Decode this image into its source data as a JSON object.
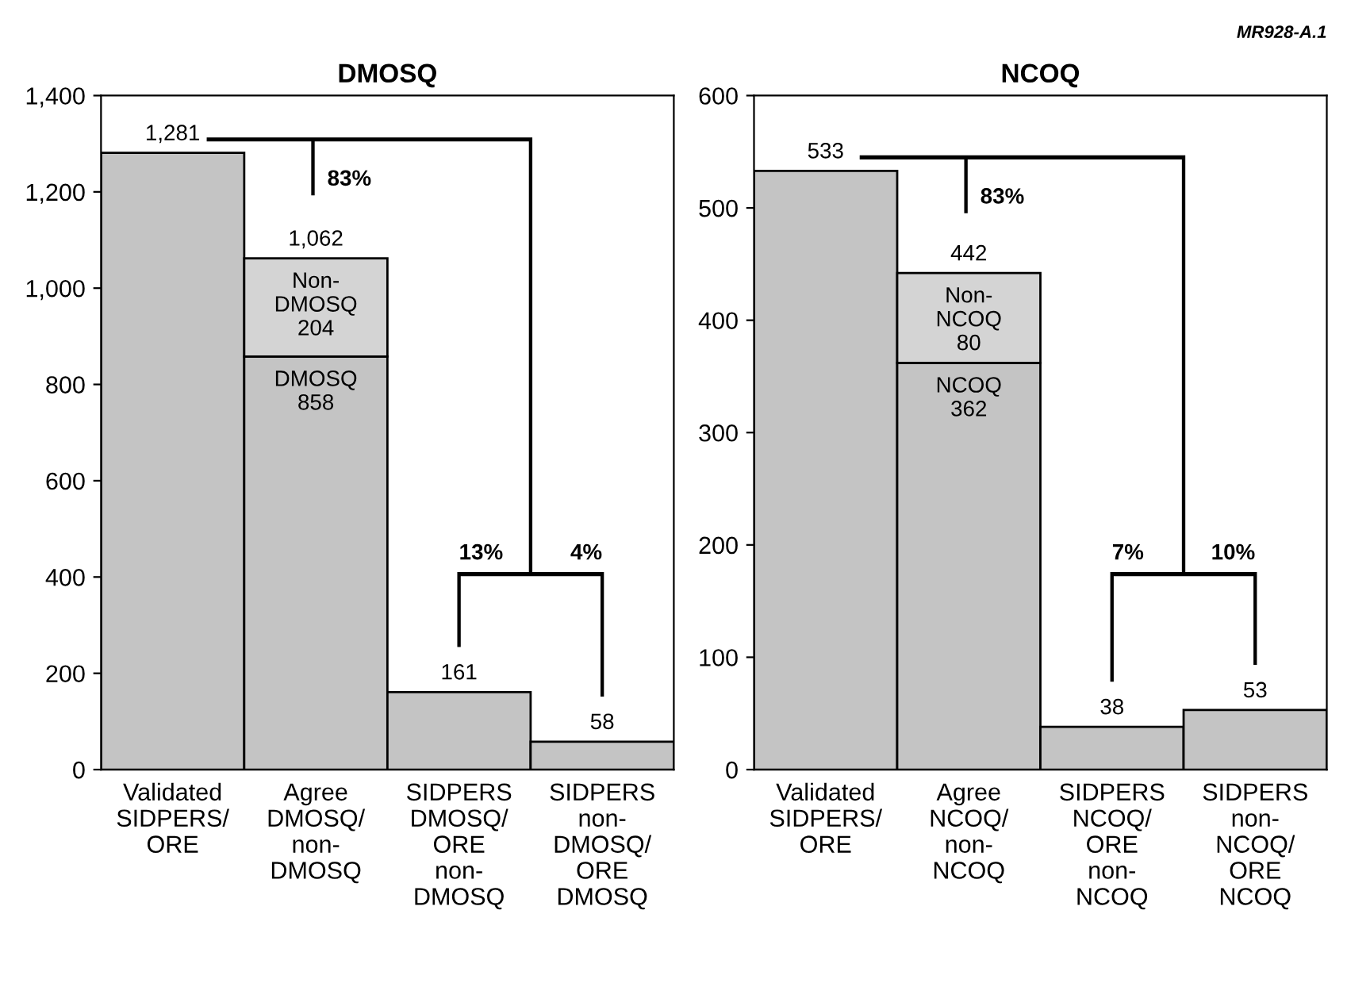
{
  "chart_data": [
    {
      "type": "bar",
      "title": "DMOSQ",
      "stacked": true,
      "categories": [
        "Validated\nSIDPERS/\nORE",
        "Agree\nDMOSQ/\nnon-\nDMOSQ",
        "SIDPERS\nDMOSQ/\nORE\nnon-\nDMOSQ",
        "SIDPERS\nnon-\nDMOSQ/\nORE\nDMOSQ"
      ],
      "series": [
        {
          "color": "#c4c4c4",
          "values": [
            1281,
            858,
            161,
            58
          ],
          "value_labels": [
            null,
            "DMOSQ\n858",
            null,
            null
          ]
        },
        {
          "color": "#d4d4d4",
          "values": [
            null,
            204,
            null,
            null
          ],
          "value_labels": [
            null,
            "Non-\nDMOSQ\n204",
            null,
            null
          ]
        }
      ],
      "totals": [
        "1,281",
        "1,062",
        "161",
        "58"
      ],
      "ylim": [
        0,
        1400
      ],
      "yticks": [
        0,
        200,
        400,
        600,
        800,
        {
          "value": 1000,
          "label": "1,000"
        },
        {
          "value": 1200,
          "label": "1,200"
        },
        {
          "value": 1400,
          "label": "1,400"
        }
      ],
      "annotations": [
        "83%",
        "13%",
        "4%"
      ]
    },
    {
      "type": "bar",
      "title": "NCOQ",
      "stacked": true,
      "categories": [
        "Validated\nSIDPERS/\nORE",
        "Agree\nNCOQ/\nnon-\nNCOQ",
        "SIDPERS\nNCOQ/\nORE\nnon-\nNCOQ",
        "SIDPERS\nnon-\nNCOQ/\nORE\nNCOQ"
      ],
      "series": [
        {
          "color": "#c4c4c4",
          "values": [
            533,
            362,
            38,
            53
          ],
          "value_labels": [
            null,
            "NCOQ\n362",
            null,
            null
          ]
        },
        {
          "color": "#d4d4d4",
          "values": [
            null,
            80,
            null,
            null
          ],
          "value_labels": [
            null,
            "Non-\nNCOQ\n80",
            null,
            null
          ]
        }
      ],
      "totals": [
        "533",
        "442",
        "38",
        "53"
      ],
      "ylim": [
        0,
        600
      ],
      "yticks": [
        0,
        100,
        200,
        300,
        400,
        500,
        600
      ],
      "annotations": [
        "83%",
        "7%",
        "10%",
        "MR928-A.1"
      ]
    }
  ]
}
